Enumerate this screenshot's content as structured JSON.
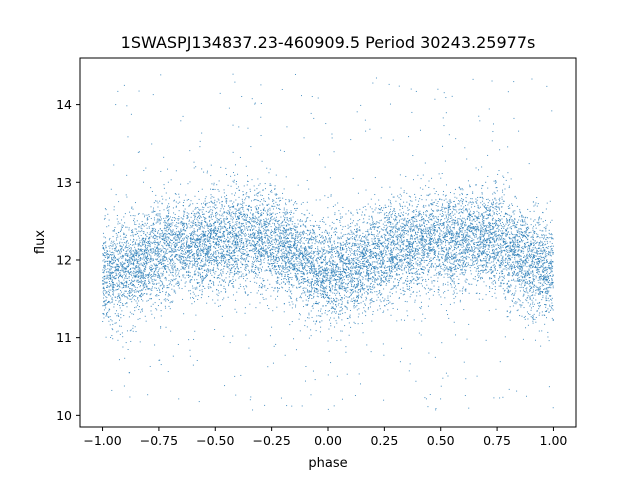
{
  "chart_data": {
    "type": "scatter",
    "title": "1SWASPJ134837.23-460909.5 Period 30243.25977s",
    "xlabel": "phase",
    "ylabel": "flux",
    "xlim": [
      -1.1,
      1.1
    ],
    "ylim": [
      9.85,
      14.6
    ],
    "x_ticks": [
      -1.0,
      -0.75,
      -0.5,
      -0.25,
      0.0,
      0.25,
      0.5,
      0.75,
      1.0
    ],
    "x_tick_labels": [
      "−1.00",
      "−0.75",
      "−0.50",
      "−0.25",
      "0.00",
      "0.25",
      "0.50",
      "0.75",
      "1.00"
    ],
    "y_ticks": [
      10,
      11,
      12,
      13,
      14
    ],
    "y_tick_labels": [
      "10",
      "11",
      "12",
      "13",
      "14"
    ],
    "grid": false,
    "legend": "none",
    "marker_color": "#1f77b4",
    "series": [
      {
        "phase_range": [
          -1.0,
          1.0
        ],
        "flux_mean": 12.1,
        "flux_sigma": 0.32,
        "modulation_harmonics": [
          {
            "cos_2pi_phase": -0.18
          },
          {
            "cos_4pi_phase": -0.07
          },
          {
            "sin_2pi_phase": -0.07
          }
        ],
        "outlier_range": [
          10.05,
          14.4
        ]
      }
    ]
  }
}
